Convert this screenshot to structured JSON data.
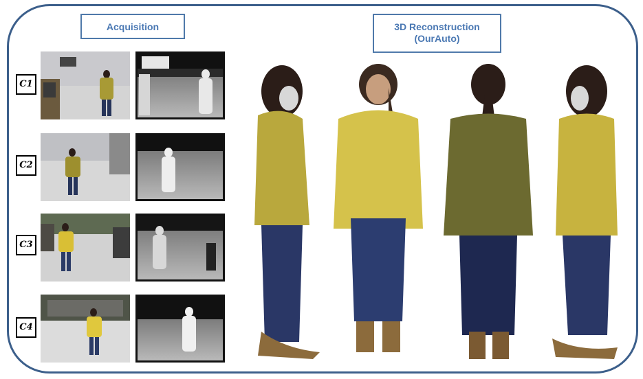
{
  "headers": {
    "acquisition": "Acquisition",
    "reconstruction_line1": "3D Reconstruction",
    "reconstruction_line2": "(OurAuto)"
  },
  "cameras": [
    {
      "label": "C1"
    },
    {
      "label": "C2"
    },
    {
      "label": "C3"
    },
    {
      "label": "C4"
    }
  ],
  "colors": {
    "frame": "#3c5f8b",
    "header_text": "#4a78b3",
    "sweater": "#c4b14a",
    "jeans": "#2b3b66",
    "hair": "#2b1d18"
  }
}
